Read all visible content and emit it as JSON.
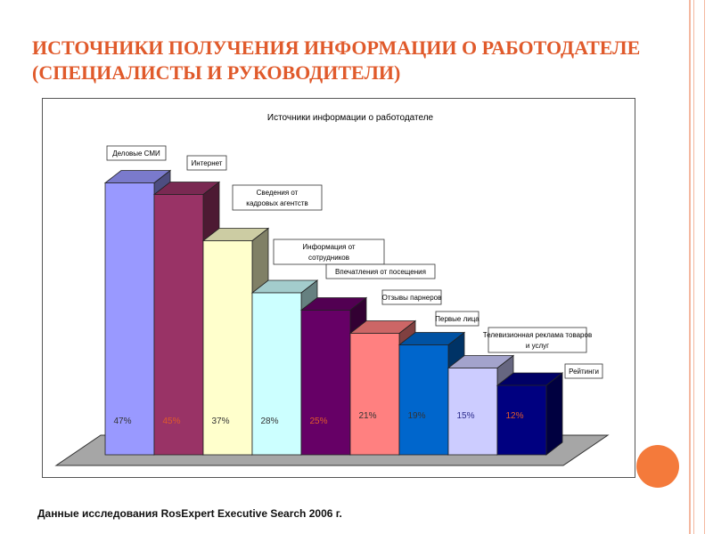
{
  "slide": {
    "title_line1": "ИСТОЧНИКИ ПОЛУЧЕНИЯ ИНФОРМАЦИИ О РАБОТОДАТЕЛЕ",
    "title_line2": "(СПЕЦИАЛИСТЫ И РУКОВОДИТЕЛИ)",
    "footnote": "Данные исследования RosExpert Executive Search 2006 г."
  },
  "colors": {
    "title": "#e05a2b",
    "accent_circle": "#f47a3b",
    "deco_line": "#f4b8a0",
    "floor": "#a6a6a6"
  },
  "chart_data": {
    "type": "bar",
    "title": "Источники информации о работодателе",
    "categories": [
      "Деловые СМИ",
      "Интернет",
      "Сведения от кадровых агентств",
      "Информация от сотрудников",
      "Впечатления от посещения",
      "Отзывы парнеров",
      "Первые лица",
      "Телевизионная реклама товаров и услуг",
      "Рейтинги"
    ],
    "values": [
      47,
      45,
      37,
      28,
      25,
      21,
      19,
      15,
      12
    ],
    "value_labels": [
      "47%",
      "45%",
      "37%",
      "28%",
      "25%",
      "21%",
      "19%",
      "15%",
      "12%"
    ],
    "label_colors": [
      "#333333",
      "#e05a2b",
      "#333333",
      "#333333",
      "#e05a2b",
      "#333333",
      "#333333",
      "#2a2a8a",
      "#e05a2b"
    ],
    "bar_colors": [
      "#9999ff",
      "#993366",
      "#ffffcc",
      "#ccffff",
      "#660066",
      "#ff8080",
      "#0066cc",
      "#ccccff",
      "#000080"
    ],
    "ylim": [
      0,
      50
    ],
    "grid": false,
    "view": "3d-column"
  }
}
